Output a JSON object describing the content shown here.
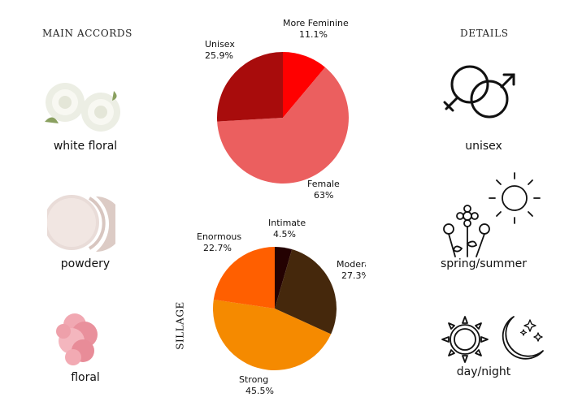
{
  "headings": {
    "accords": "MAIN ACCORDS",
    "details": "DETAILS",
    "sillage": "SILLAGE"
  },
  "accords": [
    {
      "label": "white floral",
      "icon": "white-rose-icon"
    },
    {
      "label": "powdery",
      "icon": "face-powder-icon"
    },
    {
      "label": "floral",
      "icon": "pink-carnation-icon"
    }
  ],
  "details": [
    {
      "label": "unisex",
      "icon": "gender-symbols-icon"
    },
    {
      "label": "spring/summer",
      "icon": "flowers-sun-icon"
    },
    {
      "label": "day/night",
      "icon": "sun-moon-icon"
    }
  ],
  "chart_data": [
    {
      "type": "pie",
      "title": "",
      "slices": [
        {
          "label": "More Feminine",
          "value": 11.1,
          "display": "11.1%",
          "color": "#ff0000"
        },
        {
          "label": "Female",
          "value": 63,
          "display": "63%",
          "color": "#eb5f5f"
        },
        {
          "label": "Unisex",
          "value": 25.9,
          "display": "25.9%",
          "color": "#a80c0c"
        }
      ]
    },
    {
      "type": "pie",
      "title": "SILLAGE",
      "slices": [
        {
          "label": "Intimate",
          "value": 4.5,
          "display": "4.5%",
          "color": "#240202"
        },
        {
          "label": "Moderate",
          "value": 27.3,
          "display": "27.3%",
          "color": "#45280c"
        },
        {
          "label": "Strong",
          "value": 45.5,
          "display": "45.5%",
          "color": "#f58a00"
        },
        {
          "label": "Enormous",
          "value": 22.7,
          "display": "22.7%",
          "color": "#ff5f00"
        }
      ]
    }
  ]
}
